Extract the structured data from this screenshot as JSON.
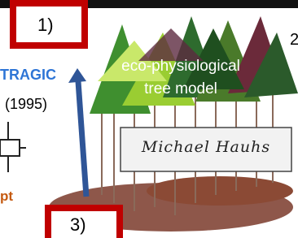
{
  "labels": {
    "box_1": "1)",
    "box_3": "3)",
    "corner": "2",
    "model_name": "TRAGIC",
    "model_year": "(1995)",
    "partial_word": "pt"
  },
  "tree_model": {
    "line_1": "eco-physiological",
    "line_2": "tree model"
  },
  "author_box": {
    "name": "Michael Hauhs"
  }
}
